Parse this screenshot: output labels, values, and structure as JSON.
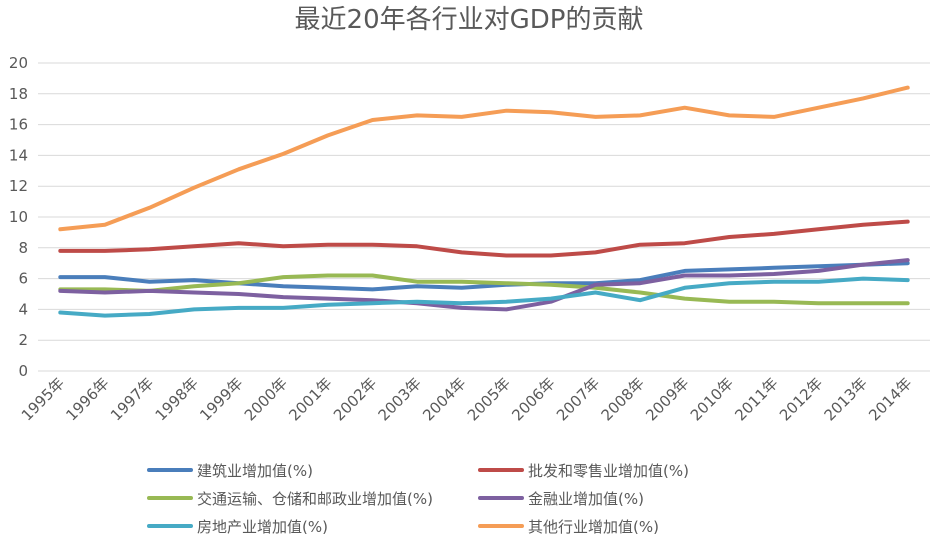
{
  "chart_data": {
    "type": "line",
    "title": "最近20年各行业对GDP的贡献",
    "xlabel": "",
    "ylabel": "",
    "ylim": [
      0,
      20
    ],
    "yticks": [
      0,
      2,
      4,
      6,
      8,
      10,
      12,
      14,
      16,
      18,
      20
    ],
    "grid": true,
    "legend_position": "bottom",
    "categories": [
      "1995年",
      "1996年",
      "1997年",
      "1998年",
      "1999年",
      "2000年",
      "2001年",
      "2002年",
      "2003年",
      "2004年",
      "2005年",
      "2006年",
      "2007年",
      "2008年",
      "2009年",
      "2010年",
      "2011年",
      "2012年",
      "2013年",
      "2014年"
    ],
    "series": [
      {
        "name": "建筑业增加值(%)",
        "color": "#4a7ebb",
        "values": [
          6.1,
          6.1,
          5.8,
          5.9,
          5.7,
          5.5,
          5.4,
          5.3,
          5.5,
          5.4,
          5.6,
          5.7,
          5.7,
          5.9,
          6.5,
          6.6,
          6.7,
          6.8,
          6.9,
          7.0
        ]
      },
      {
        "name": "批发和零售业增加值(%)",
        "color": "#be4b48",
        "values": [
          7.8,
          7.8,
          7.9,
          8.1,
          8.3,
          8.1,
          8.2,
          8.2,
          8.1,
          7.7,
          7.5,
          7.5,
          7.7,
          8.2,
          8.3,
          8.7,
          8.9,
          9.2,
          9.5,
          9.7
        ]
      },
      {
        "name": "交通运输、仓储和邮政业增加值(%)",
        "color": "#98b954",
        "values": [
          5.3,
          5.3,
          5.2,
          5.5,
          5.7,
          6.1,
          6.2,
          6.2,
          5.8,
          5.8,
          5.7,
          5.6,
          5.4,
          5.1,
          4.7,
          4.5,
          4.5,
          4.4,
          4.4,
          4.4
        ]
      },
      {
        "name": "金融业增加值(%)",
        "color": "#7d60a0",
        "values": [
          5.2,
          5.1,
          5.2,
          5.1,
          5.0,
          4.8,
          4.7,
          4.6,
          4.4,
          4.1,
          4.0,
          4.5,
          5.6,
          5.7,
          6.2,
          6.2,
          6.3,
          6.5,
          6.9,
          7.2
        ]
      },
      {
        "name": "房地产业增加值(%)",
        "color": "#46aac5",
        "values": [
          3.8,
          3.6,
          3.7,
          4.0,
          4.1,
          4.1,
          4.3,
          4.4,
          4.5,
          4.4,
          4.5,
          4.7,
          5.1,
          4.6,
          5.4,
          5.7,
          5.8,
          5.8,
          6.0,
          5.9
        ]
      },
      {
        "name": "其他行业增加值(%)",
        "color": "#f59d56",
        "values": [
          9.2,
          9.5,
          10.6,
          11.9,
          13.1,
          14.1,
          15.3,
          16.3,
          16.6,
          16.5,
          16.9,
          16.8,
          16.5,
          16.6,
          17.1,
          16.6,
          16.5,
          17.1,
          17.7,
          18.4
        ]
      }
    ]
  }
}
